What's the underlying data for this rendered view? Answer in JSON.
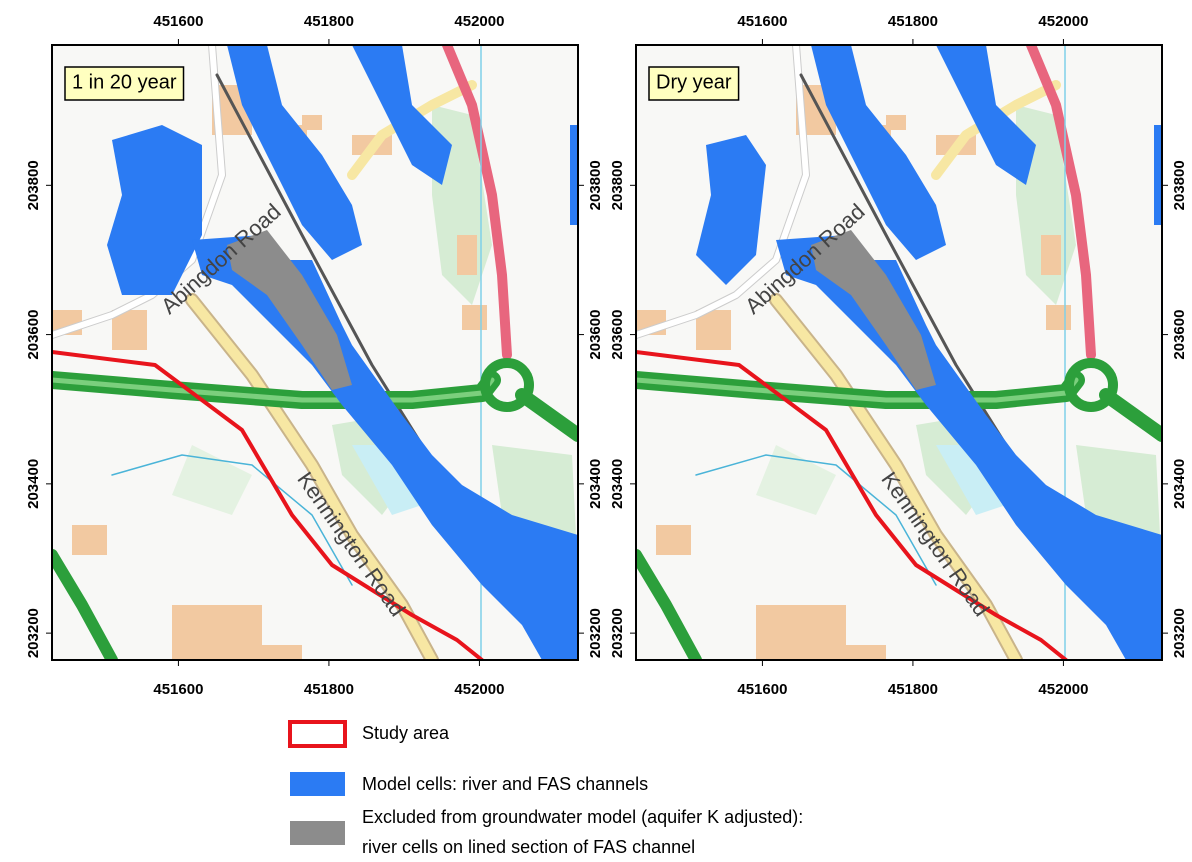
{
  "panels": [
    {
      "label": "1 in 20 year"
    },
    {
      "label": "Dry year"
    }
  ],
  "map": {
    "xlim": [
      451432,
      452131
    ],
    "ylim": [
      203164,
      203988
    ],
    "xticks": [
      451600,
      451800,
      452000
    ],
    "yticks": [
      203200,
      203400,
      203600,
      203800
    ],
    "road_labels": [
      "Abingdon Road",
      "Kennington Road"
    ]
  },
  "legend": [
    {
      "label": "Study area",
      "color": "#e8141c"
    },
    {
      "label": "Model cells: river and FAS channels",
      "color": "#2b7bf3"
    },
    {
      "label": [
        "Excluded from groundwater model (aquifer K adjusted):",
        "river cells on lined section of FAS channel"
      ],
      "color": "#8c8c8c"
    }
  ]
}
